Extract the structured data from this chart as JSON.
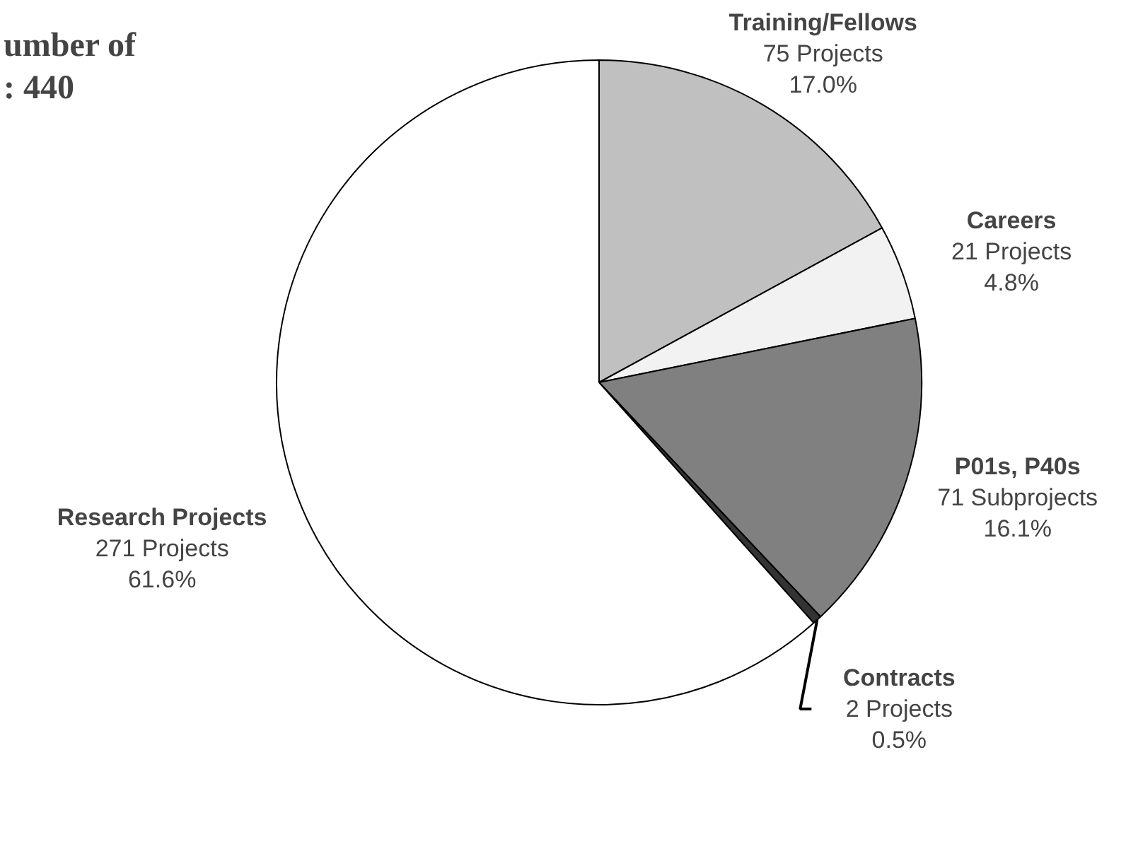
{
  "chart_data": {
    "type": "pie",
    "title": "umber of\n:  440",
    "categories": [
      "Training/Fellows",
      "Careers",
      "P01s, P40s",
      "Contracts",
      "Research Projects"
    ],
    "values": [
      75,
      21,
      71,
      2,
      271
    ],
    "colors": [
      "#c0c0c0",
      "#f2f2f2",
      "#808080",
      "#333333",
      "#ffffff"
    ],
    "value_labels": [
      "75 Projects\n17.0%",
      "21 Projects\n4.8%",
      "71 Subprojects\n16.1%",
      "2 Projects\n0.5%",
      "271 Projects\n61.6%"
    ]
  }
}
